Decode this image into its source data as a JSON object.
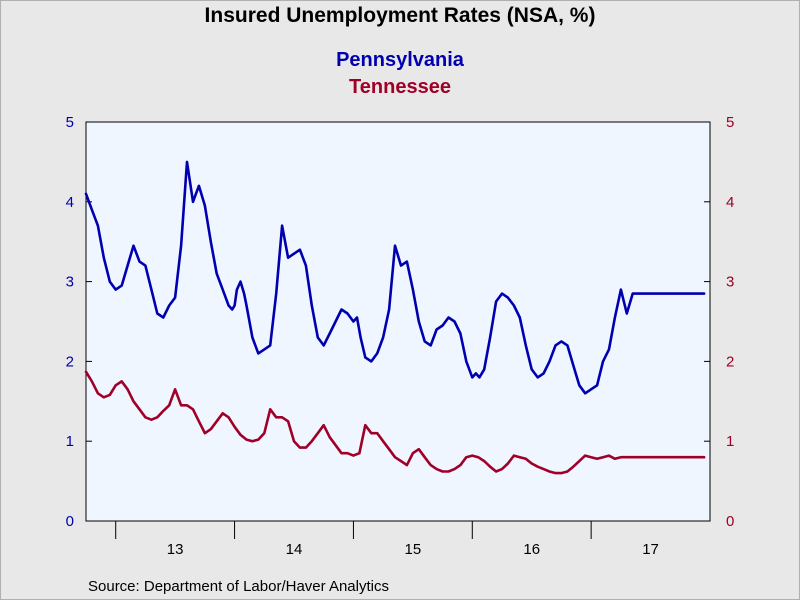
{
  "title": "Insured Unemployment Rates (NSA, %)",
  "source": "Source:  Department of Labor/Haver Analytics",
  "colors": {
    "series1": "#0000b0",
    "series2": "#a00028",
    "plot_bg": "#f0f6ff",
    "page_bg": "#e8e8e8"
  },
  "chart_data": {
    "type": "line",
    "title": "Insured Unemployment Rates (NSA, %)",
    "x_unit": "year",
    "xlim": [
      2012.75,
      2018.0
    ],
    "x_ticks": [
      {
        "label": "13",
        "x": 2013.5
      },
      {
        "label": "14",
        "x": 2014.5
      },
      {
        "label": "15",
        "x": 2015.5
      },
      {
        "label": "16",
        "x": 2016.5
      },
      {
        "label": "17",
        "x": 2017.5
      }
    ],
    "year_boundaries": [
      2013.0,
      2014.0,
      2015.0,
      2016.0,
      2017.0
    ],
    "ylim_left": [
      0,
      5
    ],
    "ylim_right": [
      0,
      5
    ],
    "y_ticks_left": [
      "0",
      "1",
      "2",
      "3",
      "4",
      "5"
    ],
    "y_ticks_right": [
      "0",
      "1",
      "2",
      "3",
      "4",
      "5"
    ],
    "grid": false,
    "series": [
      {
        "name": "Pennsylvania",
        "axis": "left",
        "x": [
          2012.75,
          2012.8,
          2012.85,
          2012.9,
          2012.95,
          2013.0,
          2013.05,
          2013.1,
          2013.15,
          2013.2,
          2013.25,
          2013.3,
          2013.35,
          2013.4,
          2013.45,
          2013.5,
          2013.55,
          2013.6,
          2013.65,
          2013.7,
          2013.75,
          2013.8,
          2013.85,
          2013.9,
          2013.95,
          2013.98,
          2014.0,
          2014.02,
          2014.05,
          2014.08,
          2014.1,
          2014.15,
          2014.2,
          2014.25,
          2014.3,
          2014.35,
          2014.4,
          2014.45,
          2014.5,
          2014.55,
          2014.6,
          2014.65,
          2014.7,
          2014.75,
          2014.8,
          2014.85,
          2014.9,
          2014.95,
          2015.0,
          2015.03,
          2015.06,
          2015.1,
          2015.15,
          2015.2,
          2015.25,
          2015.3,
          2015.35,
          2015.4,
          2015.45,
          2015.5,
          2015.55,
          2015.6,
          2015.65,
          2015.7,
          2015.75,
          2015.8,
          2015.85,
          2015.9,
          2015.95,
          2016.0,
          2016.03,
          2016.06,
          2016.1,
          2016.15,
          2016.2,
          2016.25,
          2016.3,
          2016.35,
          2016.4,
          2016.45,
          2016.5,
          2016.55,
          2016.6,
          2016.65,
          2016.7,
          2016.75,
          2016.8,
          2016.85,
          2016.9,
          2016.95,
          2017.0,
          2017.05,
          2017.1,
          2017.15,
          2017.2,
          2017.25,
          2017.3,
          2017.35,
          2017.4,
          2017.45,
          2017.5,
          2017.55,
          2017.6,
          2017.65,
          2017.7,
          2017.75,
          2017.8,
          2017.85,
          2017.9,
          2017.95
        ],
        "values": [
          4.1,
          3.9,
          3.7,
          3.3,
          3.0,
          2.9,
          2.95,
          3.2,
          3.45,
          3.25,
          3.2,
          2.9,
          2.6,
          2.55,
          2.7,
          2.8,
          3.45,
          4.5,
          4.0,
          4.2,
          3.95,
          3.5,
          3.1,
          2.9,
          2.7,
          2.65,
          2.7,
          2.9,
          3.0,
          2.85,
          2.7,
          2.3,
          2.1,
          2.15,
          2.2,
          2.85,
          3.7,
          3.3,
          3.35,
          3.4,
          3.2,
          2.7,
          2.3,
          2.2,
          2.35,
          2.5,
          2.65,
          2.6,
          2.5,
          2.55,
          2.3,
          2.05,
          2.0,
          2.1,
          2.3,
          2.65,
          3.45,
          3.2,
          3.25,
          2.9,
          2.5,
          2.25,
          2.2,
          2.4,
          2.45,
          2.55,
          2.5,
          2.35,
          2.0,
          1.8,
          1.85,
          1.8,
          1.9,
          2.3,
          2.75,
          2.85,
          2.8,
          2.7,
          2.55,
          2.2,
          1.9,
          1.8,
          1.85,
          2.0,
          2.2,
          2.25,
          2.2,
          1.95,
          1.7,
          1.6,
          1.65,
          1.7,
          2.0,
          2.15,
          2.55,
          2.9,
          2.6,
          2.85,
          2.85,
          2.85,
          2.85,
          2.85,
          2.85,
          2.85,
          2.85,
          2.85,
          2.85,
          2.85,
          2.85,
          2.85
        ]
      },
      {
        "name": "Tennessee",
        "axis": "right",
        "x": [
          2012.75,
          2012.8,
          2012.85,
          2012.9,
          2012.95,
          2013.0,
          2013.05,
          2013.1,
          2013.15,
          2013.2,
          2013.25,
          2013.3,
          2013.35,
          2013.4,
          2013.45,
          2013.5,
          2013.55,
          2013.6,
          2013.65,
          2013.7,
          2013.75,
          2013.8,
          2013.85,
          2013.9,
          2013.95,
          2014.0,
          2014.05,
          2014.1,
          2014.15,
          2014.2,
          2014.25,
          2014.3,
          2014.35,
          2014.4,
          2014.45,
          2014.5,
          2014.55,
          2014.6,
          2014.65,
          2014.7,
          2014.75,
          2014.8,
          2014.85,
          2014.9,
          2014.95,
          2015.0,
          2015.05,
          2015.1,
          2015.15,
          2015.2,
          2015.25,
          2015.3,
          2015.35,
          2015.4,
          2015.45,
          2015.5,
          2015.55,
          2015.6,
          2015.65,
          2015.7,
          2015.75,
          2015.8,
          2015.85,
          2015.9,
          2015.95,
          2016.0,
          2016.05,
          2016.1,
          2016.15,
          2016.2,
          2016.25,
          2016.3,
          2016.35,
          2016.4,
          2016.45,
          2016.5,
          2016.55,
          2016.6,
          2016.65,
          2016.7,
          2016.75,
          2016.8,
          2016.85,
          2016.9,
          2016.95,
          2017.0,
          2017.05,
          2017.1,
          2017.15,
          2017.2,
          2017.25,
          2017.3,
          2017.35,
          2017.4,
          2017.45,
          2017.5,
          2017.55,
          2017.6,
          2017.65,
          2017.7,
          2017.75,
          2017.8,
          2017.85,
          2017.9,
          2017.95
        ],
        "values": [
          1.87,
          1.75,
          1.6,
          1.55,
          1.58,
          1.7,
          1.75,
          1.65,
          1.5,
          1.4,
          1.3,
          1.27,
          1.3,
          1.38,
          1.45,
          1.65,
          1.45,
          1.45,
          1.4,
          1.25,
          1.1,
          1.15,
          1.25,
          1.35,
          1.3,
          1.18,
          1.08,
          1.02,
          1.0,
          1.02,
          1.1,
          1.4,
          1.3,
          1.3,
          1.25,
          1.0,
          0.92,
          0.92,
          1.0,
          1.1,
          1.2,
          1.05,
          0.95,
          0.85,
          0.85,
          0.82,
          0.85,
          1.2,
          1.1,
          1.1,
          1.0,
          0.9,
          0.8,
          0.75,
          0.7,
          0.85,
          0.9,
          0.8,
          0.7,
          0.65,
          0.62,
          0.62,
          0.65,
          0.7,
          0.8,
          0.82,
          0.8,
          0.75,
          0.68,
          0.62,
          0.65,
          0.72,
          0.82,
          0.8,
          0.78,
          0.72,
          0.68,
          0.65,
          0.62,
          0.6,
          0.6,
          0.62,
          0.68,
          0.75,
          0.82,
          0.8,
          0.78,
          0.8,
          0.82,
          0.78,
          0.8,
          0.8,
          0.8,
          0.8,
          0.8,
          0.8,
          0.8,
          0.8,
          0.8,
          0.8,
          0.8,
          0.8,
          0.8,
          0.8,
          0.8
        ]
      }
    ]
  }
}
